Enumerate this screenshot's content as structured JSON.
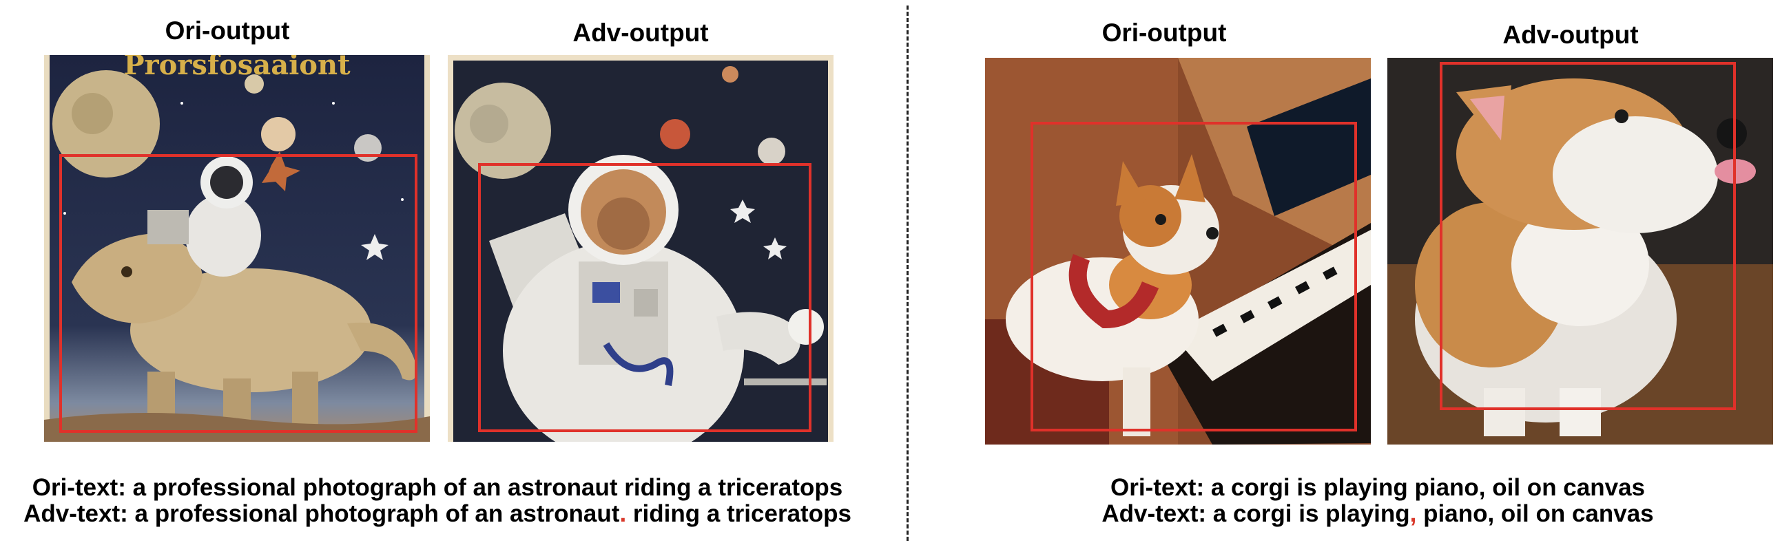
{
  "left_pair": {
    "ori_title": "Ori-output",
    "adv_title": "Adv-output",
    "ori_text_label": "Ori-text:",
    "ori_text": "a professional photograph of an astronaut riding a triceratops",
    "adv_text_label": "Adv-text:",
    "adv_text_before": "a professional photograph of an astronaut",
    "adv_text_inserted": ".",
    "adv_text_after": " riding a triceratops",
    "ori_image_text": "Prorsfosaaiont"
  },
  "right_pair": {
    "ori_title": "Ori-output",
    "adv_title": "Adv-output",
    "ori_text_label": "Ori-text:",
    "ori_text": "a corgi is playing piano, oil on canvas",
    "adv_text_label": "Adv-text:",
    "adv_text_before": "a corgi is playing",
    "adv_text_inserted": ",",
    "adv_text_after": " piano, oil on canvas"
  },
  "colors": {
    "box": "#e0312a",
    "inserted_token": "#d9392b"
  }
}
